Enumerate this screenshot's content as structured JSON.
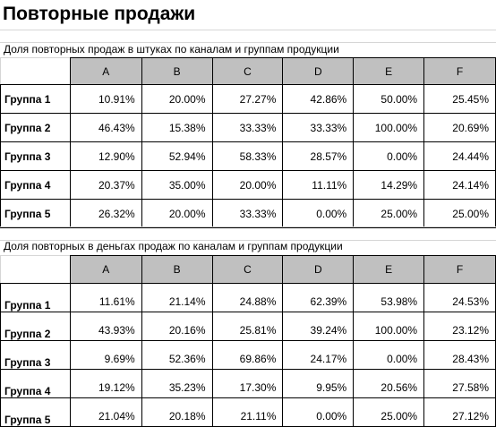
{
  "title": "Повторные продажи",
  "table1": {
    "caption": "Доля повторных продаж в штуках по каналам и группам продукции",
    "columns": [
      "A",
      "B",
      "C",
      "D",
      "E",
      "F"
    ],
    "rows": [
      {
        "label": "Группа 1",
        "values": [
          "10.91%",
          "20.00%",
          "27.27%",
          "42.86%",
          "50.00%",
          "25.45%"
        ]
      },
      {
        "label": "Группа 2",
        "values": [
          "46.43%",
          "15.38%",
          "33.33%",
          "33.33%",
          "100.00%",
          "20.69%"
        ]
      },
      {
        "label": "Группа 3",
        "values": [
          "12.90%",
          "52.94%",
          "58.33%",
          "28.57%",
          "0.00%",
          "24.44%"
        ]
      },
      {
        "label": "Группа 4",
        "values": [
          "20.37%",
          "35.00%",
          "20.00%",
          "11.11%",
          "14.29%",
          "24.14%"
        ]
      },
      {
        "label": "Группа 5",
        "values": [
          "26.32%",
          "20.00%",
          "33.33%",
          "0.00%",
          "25.00%",
          "25.00%"
        ]
      }
    ]
  },
  "table2": {
    "caption": "Доля повторных в деньгах продаж по каналам и группам продукции",
    "columns": [
      "A",
      "B",
      "C",
      "D",
      "E",
      "F"
    ],
    "rows": [
      {
        "label": "Группа 1",
        "values": [
          "11.61%",
          "21.14%",
          "24.88%",
          "62.39%",
          "53.98%",
          "24.53%"
        ]
      },
      {
        "label": "Группа 2",
        "values": [
          "43.93%",
          "20.16%",
          "25.81%",
          "39.24%",
          "100.00%",
          "23.12%"
        ]
      },
      {
        "label": "Группа 3",
        "values": [
          "9.69%",
          "52.36%",
          "69.86%",
          "24.17%",
          "0.00%",
          "28.43%"
        ]
      },
      {
        "label": "Группа 4",
        "values": [
          "19.12%",
          "35.23%",
          "17.30%",
          "9.95%",
          "20.56%",
          "27.58%"
        ]
      },
      {
        "label": "Группа 5",
        "values": [
          "21.04%",
          "20.18%",
          "21.11%",
          "0.00%",
          "25.00%",
          "27.12%"
        ]
      }
    ]
  }
}
